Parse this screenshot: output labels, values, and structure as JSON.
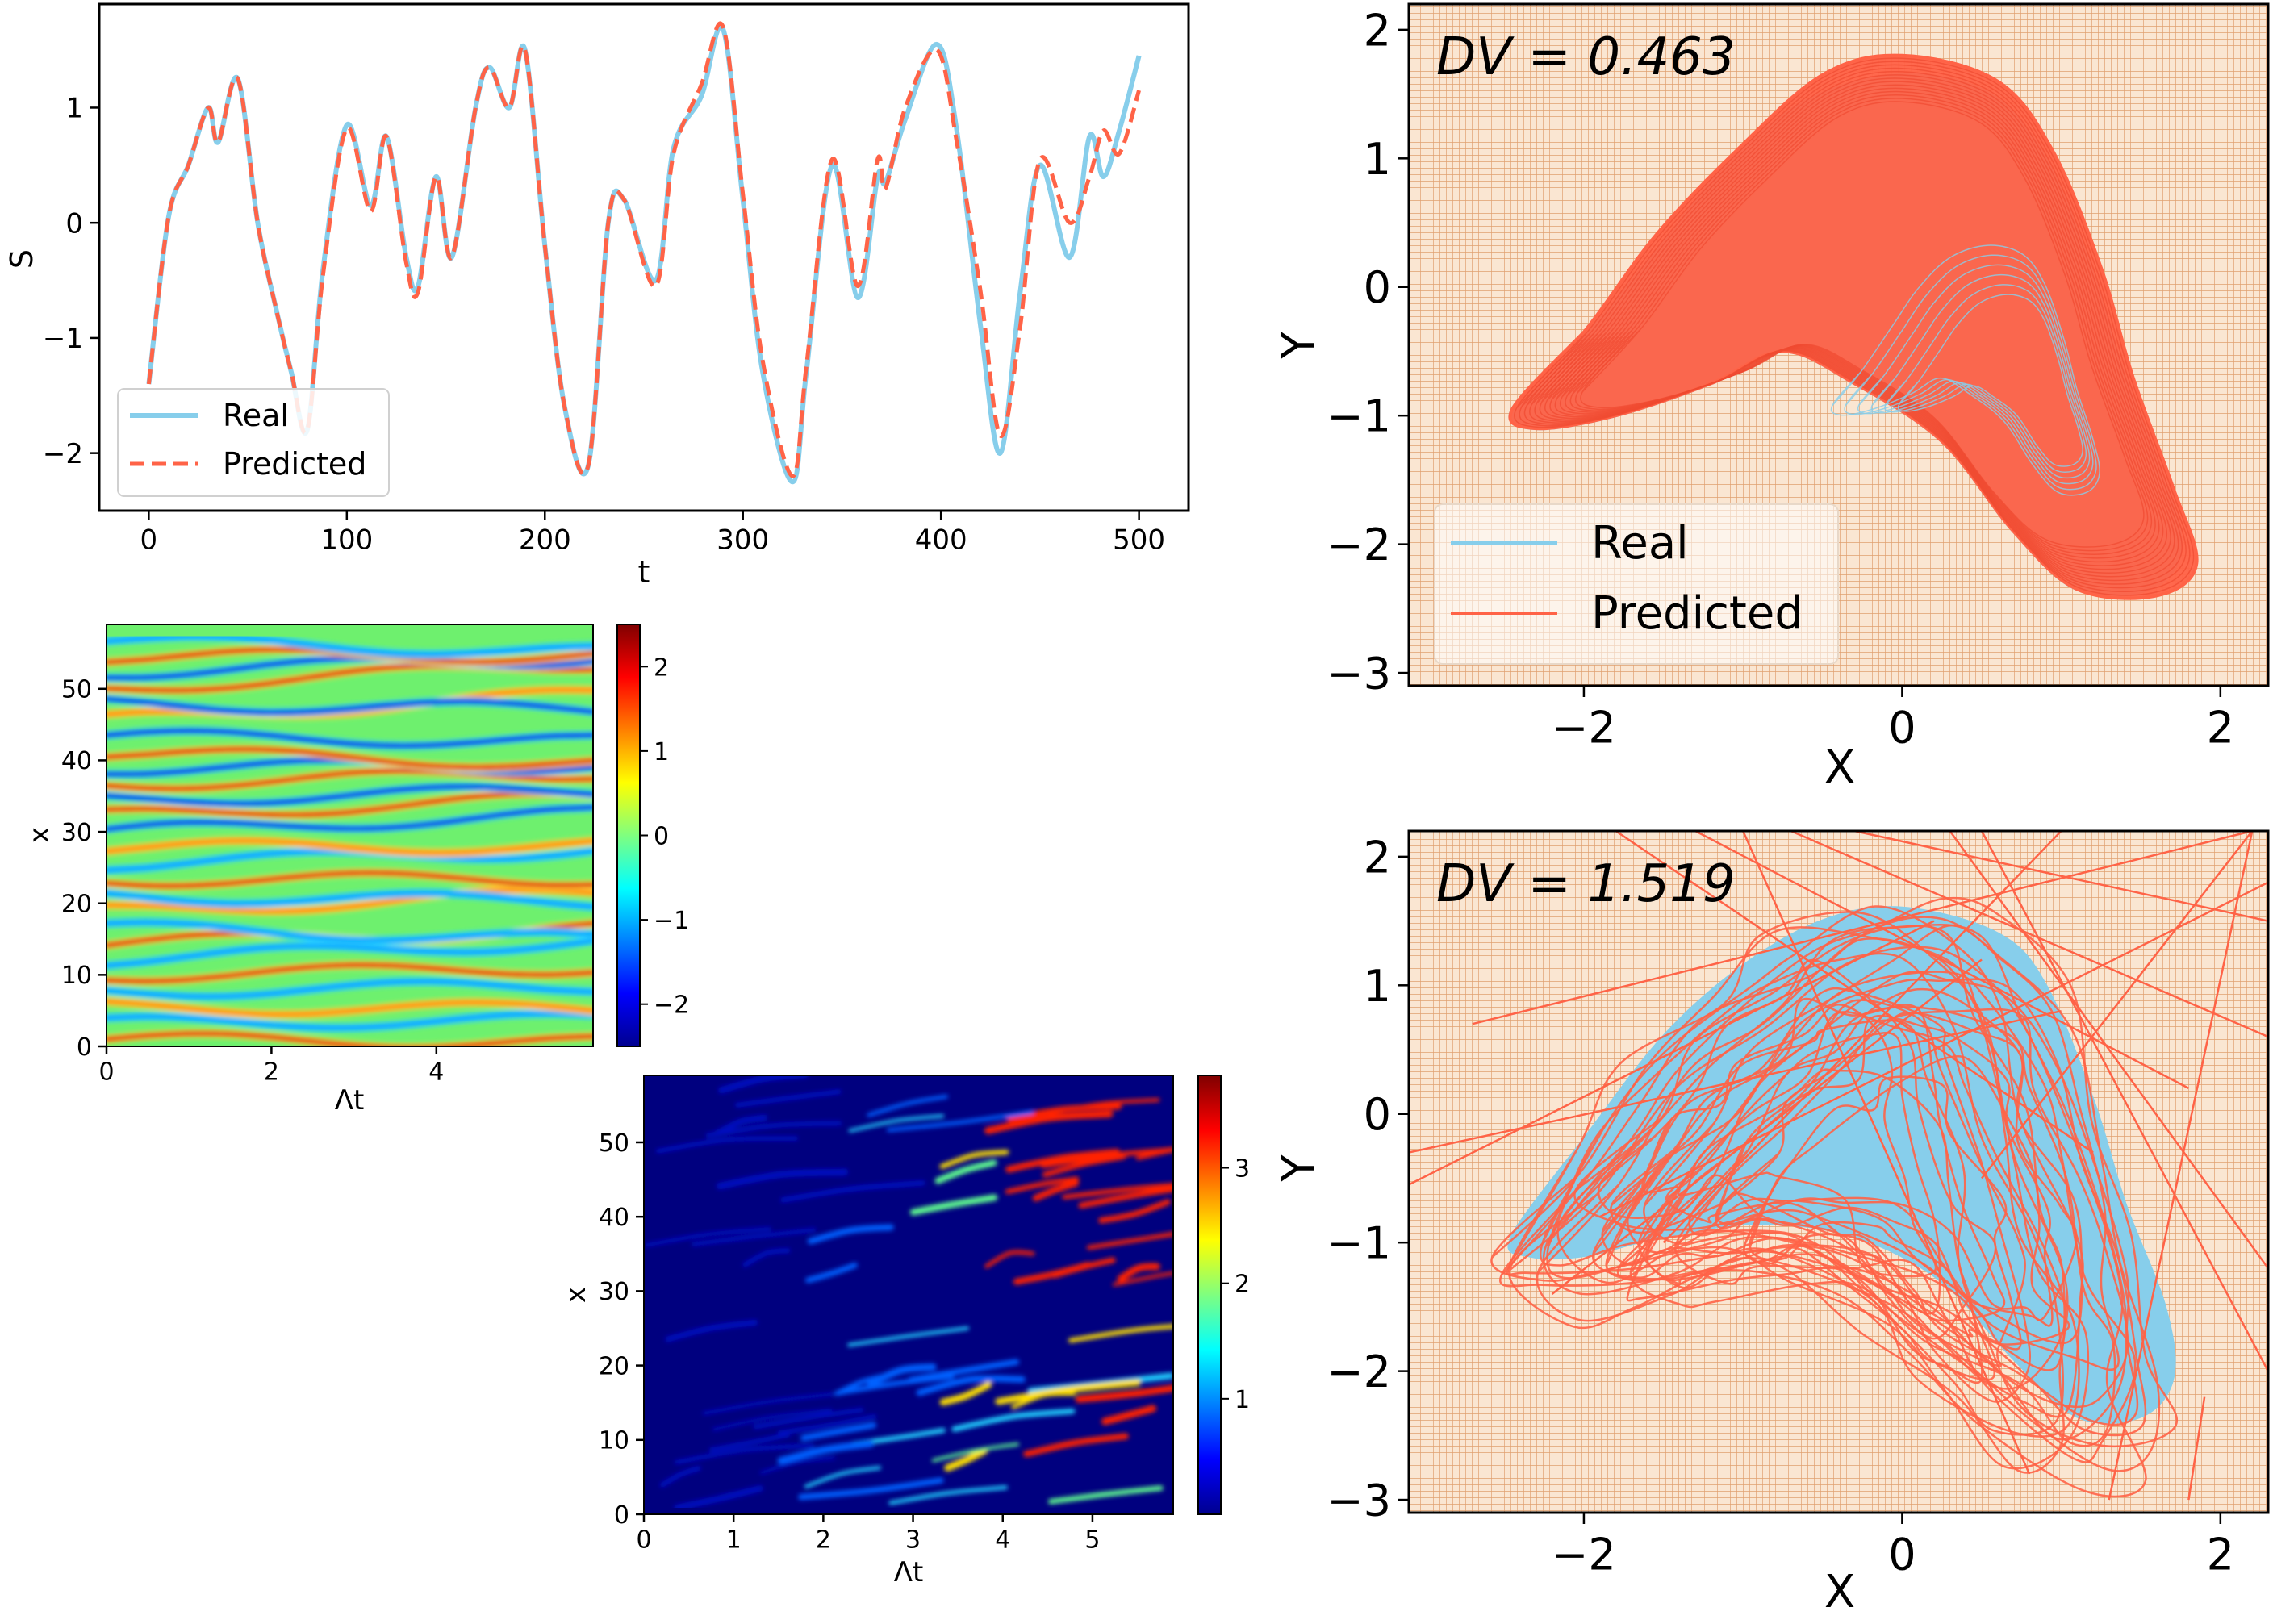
{
  "colors": {
    "real": "#87CEEB",
    "predicted": "#FF6347",
    "phase_background": "#FAE6D2",
    "phase_grid": "#E0A070",
    "axes": "#000000"
  },
  "chart_data": [
    {
      "id": "timeseries",
      "type": "line",
      "xlabel": "t",
      "ylabel": "S",
      "xlim": [
        -25,
        525
      ],
      "ylim": [
        -2.5,
        1.9
      ],
      "xticks": [
        0,
        100,
        200,
        300,
        400,
        500
      ],
      "yticks": [
        -2,
        -1,
        0,
        1
      ],
      "ytick_labels": [
        "−2",
        "−1",
        "0",
        "1"
      ],
      "legend": {
        "placement": "lower-left",
        "entries": [
          "Real",
          "Predicted"
        ]
      },
      "series": [
        {
          "name": "Real",
          "style": "solid",
          "x": [
            0,
            10,
            20,
            30,
            35,
            45,
            55,
            65,
            72,
            80,
            88,
            100,
            112,
            120,
            130,
            136,
            145,
            153,
            165,
            172,
            182,
            190,
            200,
            210,
            222,
            232,
            240,
            256,
            265,
            279,
            290,
            300,
            310,
            325,
            332,
            345,
            358,
            368,
            372,
            382,
            398,
            408,
            420,
            430,
            440,
            450,
            465,
            475,
            482,
            490,
            500
          ],
          "y": [
            -1.4,
            0.05,
            0.5,
            1.0,
            0.7,
            1.25,
            0.0,
            -0.8,
            -1.3,
            -1.8,
            -0.4,
            0.85,
            0.15,
            0.75,
            -0.3,
            -0.55,
            0.4,
            -0.3,
            1.0,
            1.35,
            1.0,
            1.5,
            -0.2,
            -1.6,
            -2.1,
            0.0,
            0.2,
            -0.5,
            0.65,
            1.1,
            1.68,
            0.2,
            -1.3,
            -2.25,
            -1.3,
            0.5,
            -0.65,
            0.4,
            0.35,
            0.9,
            1.55,
            0.8,
            -0.9,
            -2.0,
            -0.6,
            0.5,
            -0.3,
            0.75,
            0.4,
            0.8,
            1.45
          ]
        },
        {
          "name": "Predicted",
          "style": "dashed",
          "x": [
            0,
            10,
            20,
            30,
            35,
            45,
            55,
            65,
            72,
            80,
            88,
            100,
            112,
            120,
            130,
            136,
            145,
            153,
            165,
            172,
            182,
            190,
            200,
            210,
            222,
            232,
            240,
            256,
            265,
            279,
            290,
            300,
            310,
            325,
            332,
            345,
            358,
            368,
            372,
            382,
            398,
            408,
            420,
            430,
            440,
            450,
            465,
            475,
            482,
            490,
            500
          ],
          "y": [
            -1.4,
            0.05,
            0.5,
            1.0,
            0.7,
            1.25,
            0.0,
            -0.8,
            -1.3,
            -1.8,
            -0.45,
            0.82,
            0.1,
            0.75,
            -0.35,
            -0.6,
            0.4,
            -0.3,
            1.0,
            1.35,
            1.0,
            1.5,
            -0.2,
            -1.6,
            -2.1,
            0.0,
            0.2,
            -0.55,
            0.6,
            1.2,
            1.7,
            0.25,
            -1.2,
            -2.2,
            -1.25,
            0.55,
            -0.55,
            0.55,
            0.3,
            1.0,
            1.5,
            0.7,
            -0.6,
            -1.85,
            -0.9,
            0.55,
            0.0,
            0.4,
            0.8,
            0.6,
            1.15
          ]
        }
      ]
    },
    {
      "id": "phase-top",
      "type": "scatter",
      "annotation": "DV = 0.463",
      "xlabel": "X",
      "ylabel": "Y",
      "xlim": [
        -3.1,
        2.3
      ],
      "ylim": [
        -3.1,
        2.2
      ],
      "xticks": [
        -2,
        0,
        2
      ],
      "yticks": [
        -3,
        -2,
        -1,
        0,
        1,
        2
      ],
      "xtick_labels": [
        "−2",
        "0",
        "2"
      ],
      "ytick_labels": [
        "−3",
        "−2",
        "−1",
        "0",
        "1",
        "2"
      ],
      "legend": {
        "placement": "lower-left",
        "entries": [
          "Real",
          "Predicted"
        ]
      },
      "real_outline": [
        [
          -2.45,
          -0.95
        ],
        [
          -2.0,
          -0.4
        ],
        [
          -1.5,
          0.35
        ],
        [
          -1.1,
          0.95
        ],
        [
          -0.6,
          1.45
        ],
        [
          0.0,
          1.65
        ],
        [
          0.55,
          1.5
        ],
        [
          0.9,
          1.0
        ],
        [
          1.2,
          0.1
        ],
        [
          1.4,
          -0.7
        ],
        [
          1.65,
          -1.5
        ],
        [
          1.75,
          -2.05
        ],
        [
          1.55,
          -2.35
        ],
        [
          1.1,
          -2.35
        ],
        [
          0.7,
          -1.9
        ],
        [
          0.25,
          -1.2
        ],
        [
          -0.3,
          -0.75
        ],
        [
          -0.75,
          -0.5
        ],
        [
          -1.2,
          -0.75
        ],
        [
          -1.8,
          -1.0
        ],
        [
          -2.3,
          -1.1
        ]
      ],
      "predicted_outline": [
        [
          -2.45,
          -0.95
        ],
        [
          -2.0,
          -0.35
        ],
        [
          -1.55,
          0.4
        ],
        [
          -1.05,
          1.05
        ],
        [
          -0.5,
          1.65
        ],
        [
          0.0,
          1.8
        ],
        [
          0.6,
          1.6
        ],
        [
          0.95,
          1.05
        ],
        [
          1.25,
          0.15
        ],
        [
          1.45,
          -0.7
        ],
        [
          1.7,
          -1.55
        ],
        [
          1.85,
          -2.15
        ],
        [
          1.6,
          -2.4
        ],
        [
          1.1,
          -2.35
        ],
        [
          0.7,
          -1.9
        ],
        [
          0.25,
          -1.2
        ],
        [
          -0.3,
          -0.75
        ],
        [
          -0.75,
          -0.5
        ],
        [
          -1.2,
          -0.75
        ],
        [
          -1.8,
          -1.0
        ],
        [
          -2.3,
          -1.1
        ]
      ]
    },
    {
      "id": "phase-bottom",
      "type": "scatter",
      "annotation": "DV = 1.519",
      "xlabel": "X",
      "ylabel": "Y",
      "xlim": [
        -3.1,
        2.3
      ],
      "ylim": [
        -3.1,
        2.2
      ],
      "xticks": [
        -2,
        0,
        2
      ],
      "yticks": [
        -3,
        -2,
        -1,
        0,
        1,
        2
      ],
      "xtick_labels": [
        "−2",
        "0",
        "2"
      ],
      "ytick_labels": [
        "−3",
        "−2",
        "−1",
        "0",
        "1",
        "2"
      ],
      "real_outline": [
        [
          -2.45,
          -0.95
        ],
        [
          -2.0,
          -0.2
        ],
        [
          -1.5,
          0.6
        ],
        [
          -1.0,
          1.15
        ],
        [
          -0.5,
          1.5
        ],
        [
          0.0,
          1.6
        ],
        [
          0.6,
          1.4
        ],
        [
          0.9,
          1.0
        ],
        [
          1.2,
          0.1
        ],
        [
          1.4,
          -0.7
        ],
        [
          1.65,
          -1.5
        ],
        [
          1.7,
          -2.05
        ],
        [
          1.5,
          -2.35
        ],
        [
          1.1,
          -2.35
        ],
        [
          0.7,
          -1.9
        ],
        [
          0.25,
          -1.3
        ],
        [
          -0.3,
          -0.95
        ],
        [
          -0.9,
          -0.85
        ],
        [
          -1.5,
          -0.95
        ],
        [
          -2.0,
          -1.1
        ],
        [
          -2.35,
          -1.1
        ]
      ],
      "predicted_outline": [
        [
          -2.4,
          -0.9
        ],
        [
          -1.9,
          -0.15
        ],
        [
          -1.4,
          0.5
        ],
        [
          -0.9,
          1.05
        ],
        [
          -0.4,
          1.5
        ],
        [
          0.1,
          1.65
        ],
        [
          0.6,
          1.45
        ],
        [
          0.95,
          0.9
        ],
        [
          1.2,
          0.0
        ],
        [
          1.45,
          -0.9
        ],
        [
          1.6,
          -1.6
        ],
        [
          1.6,
          -2.3
        ],
        [
          1.2,
          -2.4
        ],
        [
          0.7,
          -2.0
        ],
        [
          0.2,
          -1.4
        ],
        [
          -0.4,
          -1.0
        ],
        [
          -1.0,
          -0.85
        ],
        [
          -1.6,
          -1.0
        ],
        [
          -2.1,
          -1.15
        ]
      ],
      "stray_lines": [
        [
          [
            -2.7,
            0.7
          ],
          [
            2.2,
            2.2
          ]
        ],
        [
          [
            -3.1,
            -0.55
          ],
          [
            0.2,
            1.5
          ]
        ],
        [
          [
            -1.8,
            2.2
          ],
          [
            1.2,
            -0.3
          ]
        ],
        [
          [
            -0.7,
            2.2
          ],
          [
            2.3,
            0.6
          ]
        ],
        [
          [
            0.3,
            2.2
          ],
          [
            2.3,
            -1.2
          ]
        ],
        [
          [
            2.2,
            2.2
          ],
          [
            1.3,
            -3.0
          ]
        ],
        [
          [
            -1.0,
            2.2
          ],
          [
            0.8,
            -2.8
          ]
        ],
        [
          [
            -3.1,
            -0.3
          ],
          [
            1.0,
            0.8
          ]
        ],
        [
          [
            1.0,
            2.2
          ],
          [
            -1.5,
            -1.0
          ]
        ],
        [
          [
            -2.2,
            -1.4
          ],
          [
            0.5,
            1.2
          ]
        ],
        [
          [
            2.2,
            2.2
          ],
          [
            0.5,
            -0.5
          ]
        ],
        [
          [
            2.3,
            1.8
          ],
          [
            -1.9,
            -0.8
          ]
        ],
        [
          [
            -1.3,
            2.2
          ],
          [
            1.8,
            0.2
          ]
        ],
        [
          [
            0.5,
            2.2
          ],
          [
            2.3,
            -2.0
          ]
        ],
        [
          [
            1.8,
            -3.0
          ],
          [
            1.9,
            -2.2
          ]
        ],
        [
          [
            -0.3,
            2.2
          ],
          [
            2.3,
            1.5
          ]
        ]
      ]
    },
    {
      "id": "heatmap-field",
      "type": "heatmap",
      "xlabel": "Λt",
      "ylabel": "x",
      "xlim": [
        0,
        5.9
      ],
      "ylim": [
        0,
        59
      ],
      "xticks": [
        0,
        2,
        4
      ],
      "yticks": [
        0,
        10,
        20,
        30,
        40,
        50
      ],
      "colorbar": {
        "min": -2.5,
        "max": 2.5,
        "ticks": [
          -2,
          -1,
          0,
          1,
          2
        ],
        "tick_labels": [
          "−2",
          "−1",
          "0",
          "1",
          "2"
        ],
        "colormap": "jet"
      }
    },
    {
      "id": "heatmap-error",
      "type": "heatmap",
      "xlabel": "Λt",
      "ylabel": "x",
      "xlim": [
        0,
        5.9
      ],
      "ylim": [
        0,
        59
      ],
      "xticks": [
        0,
        1,
        2,
        3,
        4,
        5
      ],
      "yticks": [
        0,
        10,
        20,
        30,
        40,
        50
      ],
      "colorbar": {
        "min": 0,
        "max": 3.8,
        "ticks": [
          1,
          2,
          3
        ],
        "tick_labels": [
          "1",
          "2",
          "3"
        ],
        "colormap": "jet"
      }
    }
  ]
}
